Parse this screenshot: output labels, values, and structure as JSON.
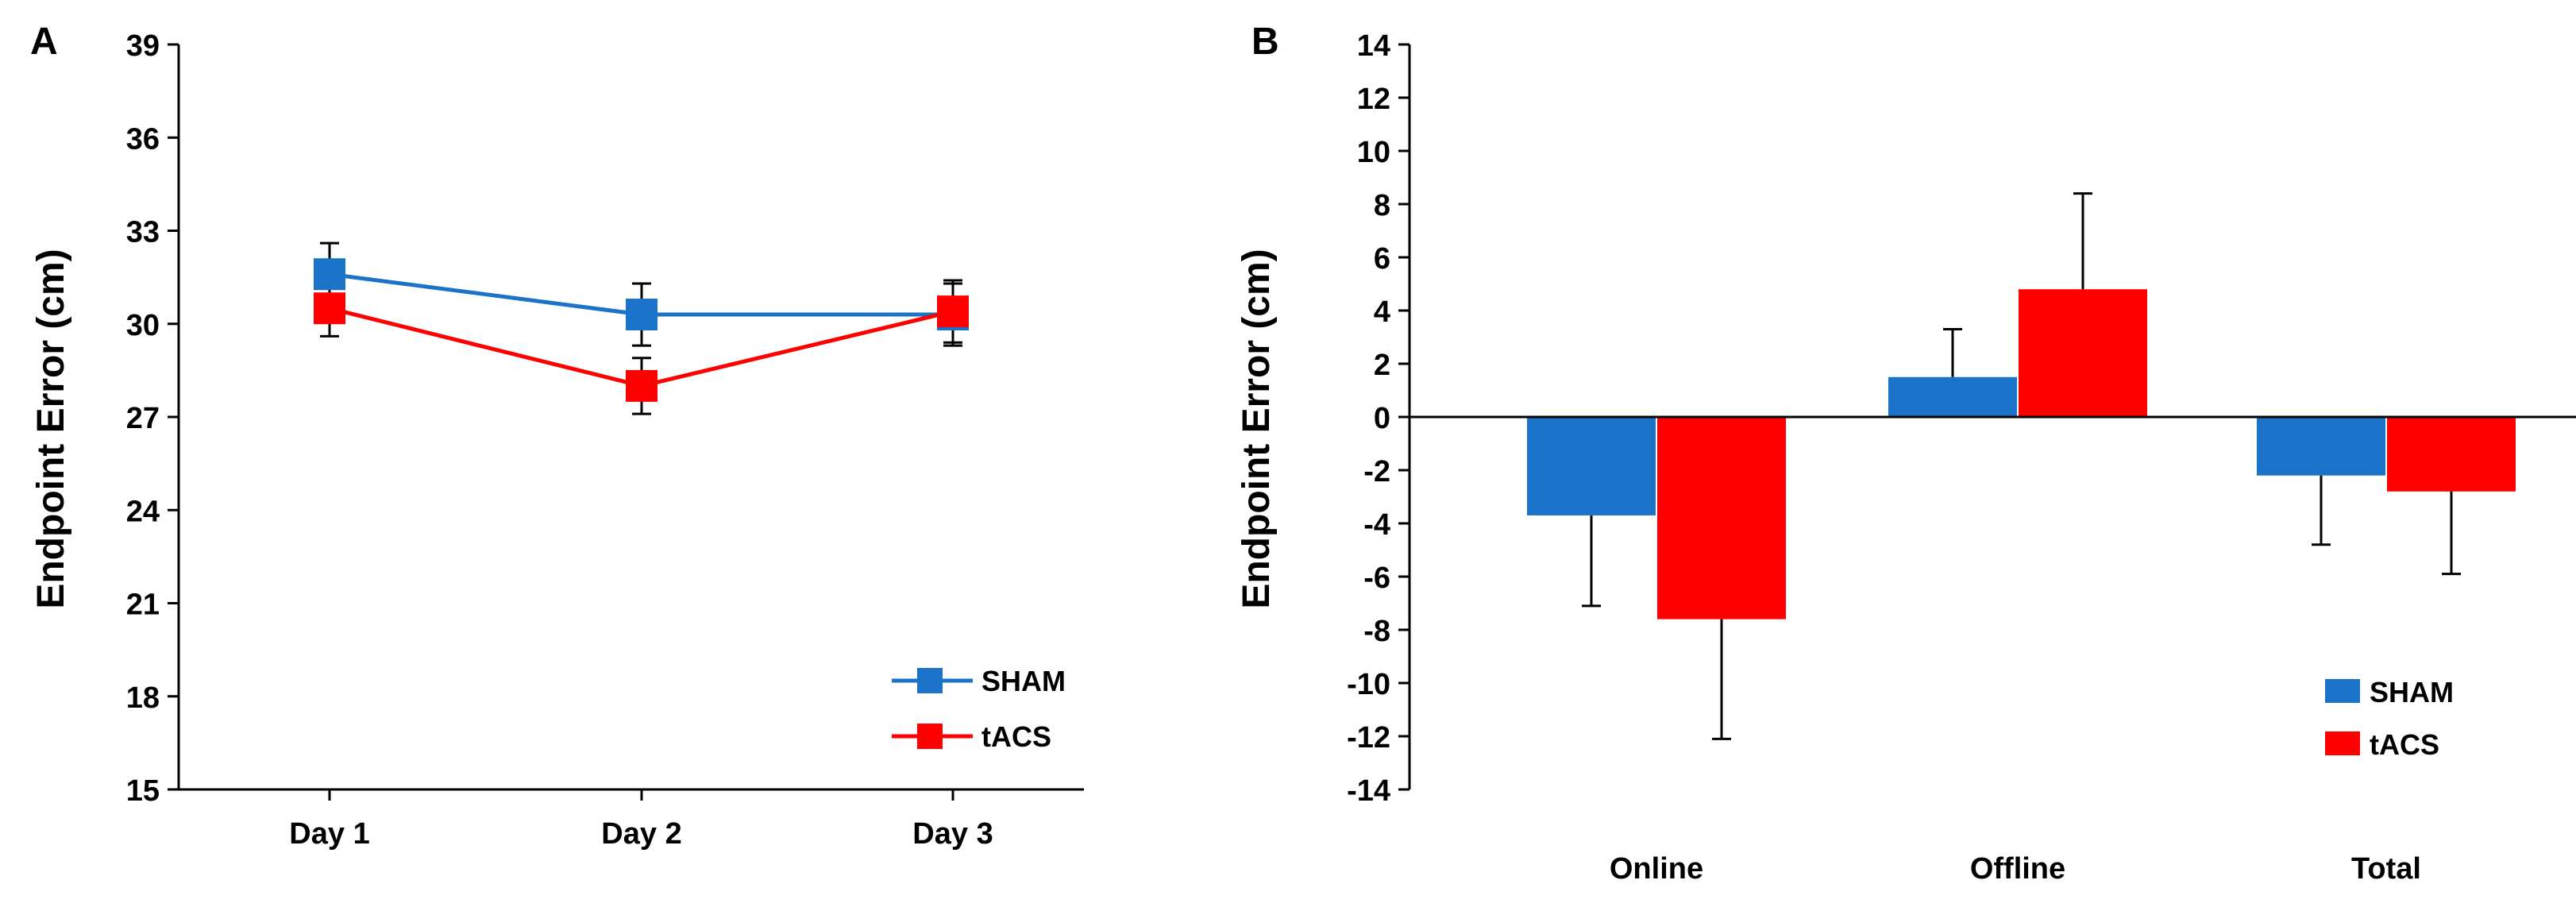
{
  "colors": {
    "sham": "#1a73c8",
    "tacs": "#ff0000"
  },
  "chart_data": [
    {
      "panel": "A",
      "type": "line",
      "categories": [
        "Day 1",
        "Day 2",
        "Day 3"
      ],
      "ylabel": "Endpoint Error (cm)",
      "ylim": [
        15,
        39
      ],
      "yticks": [
        15,
        18,
        21,
        24,
        27,
        30,
        33,
        36,
        39
      ],
      "legend": "bottom-right",
      "series": [
        {
          "name": "SHAM",
          "values": [
            31.6,
            30.3,
            30.3
          ],
          "error": [
            1.0,
            1.0,
            1.0
          ]
        },
        {
          "name": "tACS",
          "values": [
            30.5,
            28.0,
            30.4
          ],
          "error": [
            0.9,
            0.9,
            1.0
          ]
        }
      ]
    },
    {
      "panel": "B",
      "type": "bar",
      "categories": [
        "Online",
        "Offline",
        "Total"
      ],
      "ylabel": "Endpoint Error (cm)",
      "ylim": [
        -14,
        14
      ],
      "yticks": [
        -14,
        -12,
        -10,
        -8,
        -6,
        -4,
        -2,
        0,
        2,
        4,
        6,
        8,
        10,
        12,
        14
      ],
      "legend": "bottom-right",
      "series": [
        {
          "name": "SHAM",
          "values": [
            -3.7,
            1.5,
            -2.2
          ],
          "error": [
            3.4,
            1.8,
            2.6
          ]
        },
        {
          "name": "tACS",
          "values": [
            -7.6,
            4.8,
            -2.8
          ],
          "error": [
            4.5,
            3.6,
            3.1
          ]
        }
      ]
    }
  ]
}
